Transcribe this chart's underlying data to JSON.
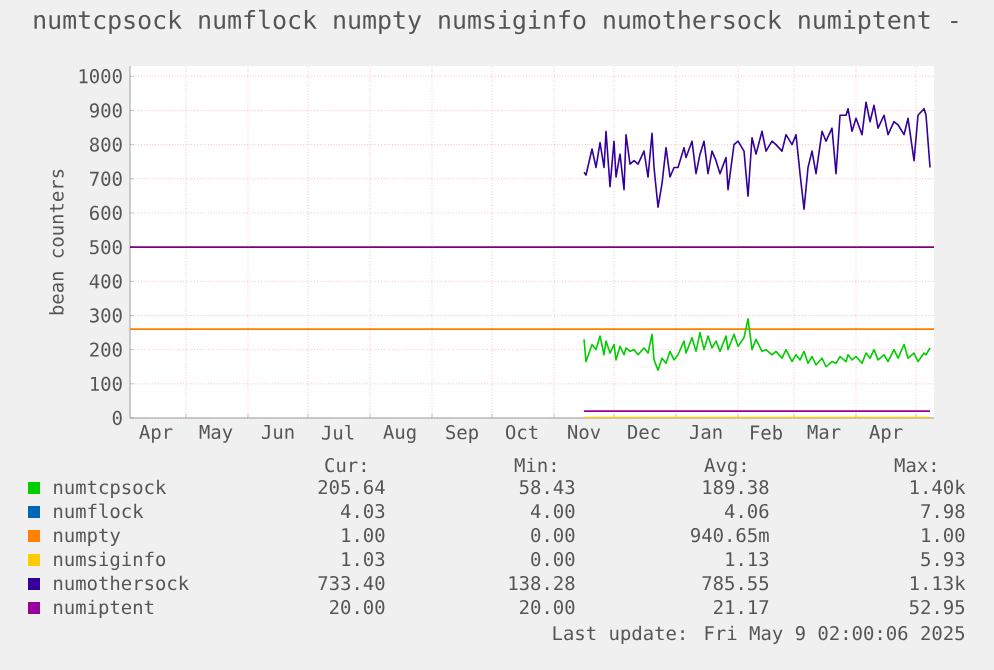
{
  "chart_data": {
    "type": "line",
    "title": "numtcpsock numflock numpty numsiginfo numothersock numiptent -",
    "ylabel": "bean counters",
    "x": [
      "2024-11-16",
      "2024-11-17",
      "2024-11-20",
      "2024-11-22",
      "2024-11-24",
      "2024-11-26",
      "2024-11-27",
      "2024-11-29",
      "2024-12-01",
      "2024-12-02",
      "2024-12-04",
      "2024-12-06",
      "2024-12-07",
      "2024-12-09",
      "2024-12-11",
      "2024-12-13",
      "2024-12-16",
      "2024-12-18",
      "2024-12-20",
      "2024-12-21",
      "2024-12-23",
      "2024-12-25",
      "2024-12-27",
      "2024-12-29",
      "2024-12-31",
      "2025-01-02",
      "2025-01-05",
      "2025-01-06",
      "2025-01-09",
      "2025-01-11",
      "2025-01-13",
      "2025-01-15",
      "2025-01-17",
      "2025-01-19",
      "2025-01-21",
      "2025-01-23",
      "2025-01-26",
      "2025-01-27",
      "2025-01-30",
      "2025-02-01",
      "2025-02-04",
      "2025-02-06",
      "2025-02-08",
      "2025-02-10",
      "2025-02-13",
      "2025-02-15",
      "2025-02-18",
      "2025-02-20",
      "2025-02-23",
      "2025-02-25",
      "2025-02-28",
      "2025-03-02",
      "2025-03-04",
      "2025-03-06",
      "2025-03-08",
      "2025-03-10",
      "2025-03-12",
      "2025-03-15",
      "2025-03-17",
      "2025-03-20",
      "2025-03-22",
      "2025-03-24",
      "2025-03-27",
      "2025-03-28",
      "2025-03-30",
      "2025-04-01",
      "2025-04-04",
      "2025-04-06",
      "2025-04-08",
      "2025-04-10",
      "2025-04-12",
      "2025-04-15",
      "2025-04-17",
      "2025-04-20",
      "2025-04-22",
      "2025-04-25",
      "2025-04-27",
      "2025-04-30",
      "2025-05-02",
      "2025-05-05",
      "2025-05-06",
      "2025-05-08"
    ],
    "series": [
      {
        "name": "numtcpsock",
        "color": "#00cc00",
        "values": [
          230,
          165,
          215,
          200,
          240,
          185,
          225,
          190,
          215,
          170,
          210,
          185,
          205,
          195,
          200,
          185,
          205,
          190,
          245,
          170,
          140,
          175,
          160,
          195,
          170,
          185,
          225,
          190,
          235,
          195,
          250,
          200,
          240,
          205,
          225,
          195,
          240,
          200,
          245,
          210,
          235,
          290,
          200,
          230,
          195,
          200,
          185,
          195,
          175,
          200,
          165,
          185,
          170,
          195,
          160,
          180,
          155,
          175,
          150,
          165,
          160,
          180,
          165,
          185,
          170,
          180,
          160,
          190,
          175,
          200,
          170,
          185,
          165,
          200,
          175,
          215,
          175,
          190,
          165,
          190,
          185,
          205
        ]
      },
      {
        "name": "numflock",
        "color": "#0066b3",
        "values": [
          null,
          null,
          null,
          null,
          null,
          null,
          null,
          null,
          null,
          null,
          null,
          null,
          null,
          null,
          null,
          null,
          null,
          null,
          null,
          null,
          null,
          null,
          null,
          null,
          null,
          null,
          null,
          null,
          null,
          null,
          null,
          null,
          null,
          null,
          null,
          null,
          null,
          null,
          null,
          null,
          null,
          null,
          null,
          null,
          null,
          null,
          null,
          null,
          null,
          null,
          null,
          null,
          null,
          null,
          null,
          null,
          null,
          null,
          null,
          null,
          null,
          null,
          null,
          null,
          null,
          null,
          null,
          null,
          null,
          null,
          null,
          null,
          null,
          null,
          null,
          null,
          null,
          null,
          null,
          null,
          null,
          null
        ]
      },
      {
        "name": "numpty",
        "color": "#ff8000",
        "values": [
          null,
          null,
          null,
          null,
          null,
          null,
          null,
          null,
          null,
          null,
          null,
          null,
          null,
          null,
          null,
          null,
          null,
          null,
          null,
          null,
          null,
          null,
          null,
          null,
          null,
          null,
          null,
          null,
          null,
          null,
          null,
          null,
          null,
          null,
          null,
          null,
          null,
          null,
          null,
          null,
          null,
          null,
          null,
          null,
          null,
          null,
          null,
          null,
          null,
          null,
          null,
          null,
          null,
          null,
          null,
          null,
          null,
          null,
          null,
          null,
          null,
          null,
          null,
          null,
          null,
          null,
          null,
          null,
          null,
          null,
          null,
          null,
          null,
          null,
          null,
          null,
          null,
          null,
          null,
          null,
          null,
          null
        ]
      },
      {
        "name": "numsiginfo",
        "color": "#ffcc00",
        "x": [
          "2024-11-16",
          "2025-05-08"
        ],
        "values": [
          1,
          1
        ]
      },
      {
        "name": "numothersock",
        "color": "#330099",
        "values": [
          719,
          711,
          787,
          733,
          806,
          733,
          839,
          677,
          810,
          705,
          772,
          668,
          829,
          743,
          753,
          743,
          781,
          705,
          833,
          733,
          617,
          686,
          791,
          705,
          733,
          733,
          791,
          762,
          810,
          715,
          772,
          810,
          715,
          781,
          753,
          715,
          762,
          668,
          800,
          810,
          781,
          649,
          820,
          772,
          839,
          781,
          810,
          800,
          781,
          829,
          800,
          829,
          715,
          611,
          733,
          781,
          715,
          839,
          810,
          848,
          715,
          886,
          886,
          905,
          839,
          877,
          829,
          924,
          867,
          915,
          848,
          886,
          829,
          867,
          858,
          829,
          877,
          753,
          886,
          905,
          886,
          733
        ]
      },
      {
        "name": "numiptent",
        "color": "#990099",
        "x": [
          "2024-11-16",
          "2025-05-08"
        ],
        "values": [
          20,
          20
        ]
      }
    ],
    "xlim": [
      "2024-04-03",
      "2025-05-10"
    ],
    "xticks": [
      {
        "value": "2024-04-16",
        "label": "Apr"
      },
      {
        "value": "2024-05-01",
        "label": null
      },
      {
        "value": "2024-05-16",
        "label": "May"
      },
      {
        "value": "2024-06-01",
        "label": null
      },
      {
        "value": "2024-06-16",
        "label": "Jun"
      },
      {
        "value": "2024-07-01",
        "label": null
      },
      {
        "value": "2024-07-16",
        "label": "Jul"
      },
      {
        "value": "2024-08-01",
        "label": null
      },
      {
        "value": "2024-08-16",
        "label": "Aug"
      },
      {
        "value": "2024-09-01",
        "label": null
      },
      {
        "value": "2024-09-16",
        "label": "Sep"
      },
      {
        "value": "2024-10-01",
        "label": null
      },
      {
        "value": "2024-10-16",
        "label": "Oct"
      },
      {
        "value": "2024-11-01",
        "label": null
      },
      {
        "value": "2024-11-16",
        "label": "Nov"
      },
      {
        "value": "2024-12-01",
        "label": null
      },
      {
        "value": "2024-12-16",
        "label": "Dec"
      },
      {
        "value": "2025-01-01",
        "label": null
      },
      {
        "value": "2025-01-16",
        "label": "Jan"
      },
      {
        "value": "2025-02-01",
        "label": null
      },
      {
        "value": "2025-02-15",
        "label": "Feb"
      },
      {
        "value": "2025-03-01",
        "label": null
      },
      {
        "value": "2025-03-16",
        "label": "Mar"
      },
      {
        "value": "2025-04-01",
        "label": null
      },
      {
        "value": "2025-04-16",
        "label": "Apr"
      },
      {
        "value": "2025-05-01",
        "label": null
      }
    ],
    "ylim": [
      0,
      1030
    ],
    "yticks": [
      0,
      100,
      200,
      300,
      400,
      500,
      600,
      700,
      800,
      900,
      1000
    ],
    "grid": true,
    "legend": "bottom",
    "ref_lines": [
      {
        "axis": "y",
        "value": 500,
        "color": "#800080"
      },
      {
        "axis": "y",
        "value": 260,
        "color": "#ff8000"
      }
    ],
    "annotations": [
      "Cur:",
      "Min:",
      "Avg:",
      "Max:",
      "205.64",
      "58.43",
      "189.38",
      "1.40k",
      "4.03",
      "4.00",
      "4.06",
      "7.98",
      "1.00",
      "0.00",
      "940.65m",
      "1.00",
      "1.03",
      "0.00",
      "1.13",
      "5.93",
      "733.40",
      "138.28",
      "785.55",
      "1.13k",
      "20.00",
      "20.00",
      "21.17",
      "52.95",
      "Last update: Fri May  9 02:00:06 2025"
    ]
  }
}
